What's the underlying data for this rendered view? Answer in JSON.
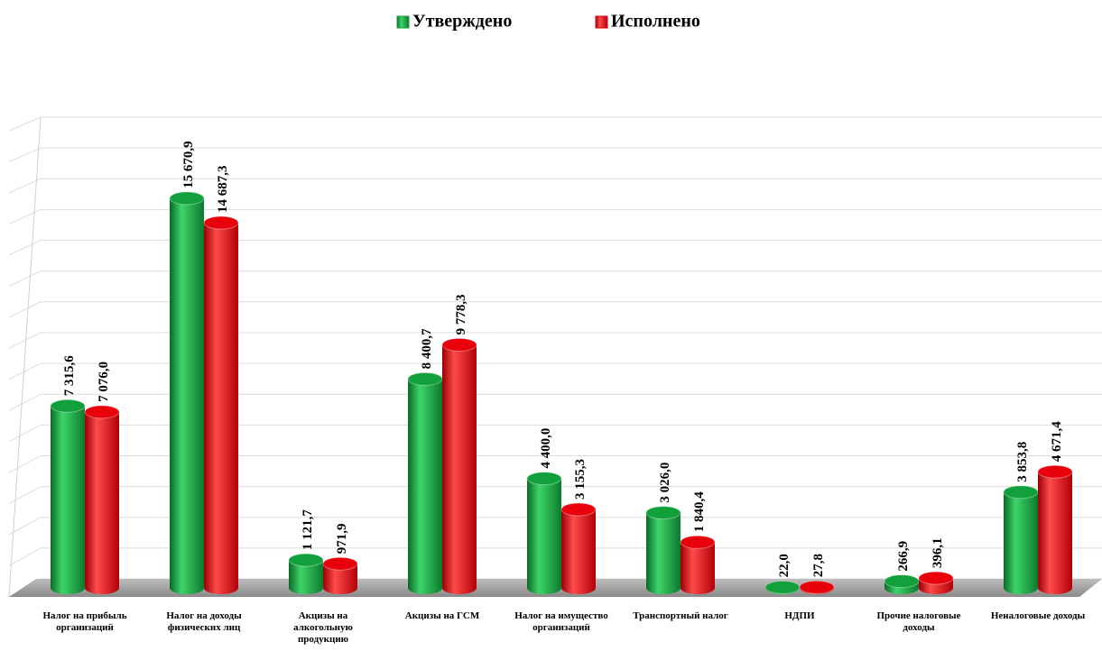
{
  "chart_data": {
    "type": "bar",
    "categories": [
      "Налог на прибыль организаций",
      "Налог на доходы физических лиц",
      "Акцизы на алкогольную продукцию",
      "Акцизы на ГСМ",
      "Налог на имущество организаций",
      "Транспортный налог",
      "НДПИ",
      "Прочие налоговые доходы",
      "Неналоговые доходы"
    ],
    "series": [
      {
        "name": "Утверждено",
        "color": "#12a03c",
        "values": [
          7315.6,
          15670.9,
          1121.7,
          8400.7,
          4400.0,
          3026.0,
          22.0,
          266.9,
          3853.8
        ],
        "value_labels": [
          "7 315,6",
          "15 670,9",
          "1 121,7",
          "8 400,7",
          "4 400,0",
          "3 026,0",
          "22,0",
          "266,9",
          "3 853,8"
        ]
      },
      {
        "name": "Исполнено",
        "color": "#e8000b",
        "values": [
          7076.0,
          14687.3,
          971.9,
          9778.3,
          3155.3,
          1840.4,
          27.8,
          396.1,
          4671.4
        ],
        "value_labels": [
          "7 076,0",
          "14 687,3",
          "971,9",
          "9 778,3",
          "3 155,3",
          "1 840,4",
          "27,8",
          "396,1",
          "4 671,4"
        ]
      }
    ],
    "ylim": [
      0,
      18750
    ],
    "legend": "top"
  }
}
